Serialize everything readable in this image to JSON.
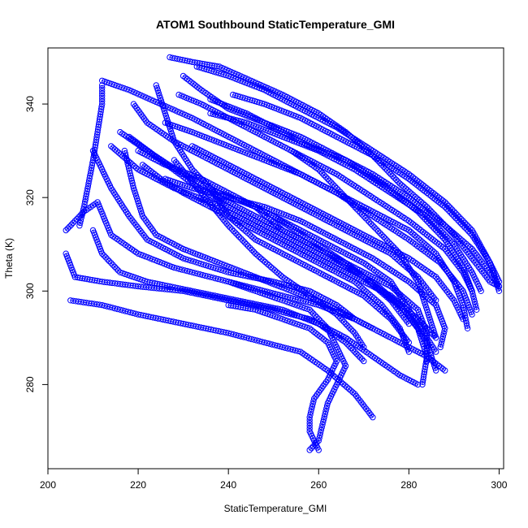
{
  "chart_data": {
    "type": "scatter",
    "title": "ATOM1 Southbound StaticTemperature_GMI",
    "xlabel": "StaticTemperature_GMI",
    "ylabel": "Theta (K)",
    "xlim": [
      200,
      301
    ],
    "ylim": [
      262,
      352
    ],
    "xticks": [
      200,
      220,
      240,
      260,
      280,
      300
    ],
    "yticks": [
      280,
      300,
      320,
      340
    ],
    "marker": "open-circle",
    "color": "#0000ff",
    "grid": false,
    "legend": "none",
    "profiles": [
      [
        [
          227,
          350
        ],
        [
          232,
          349
        ],
        [
          238,
          348
        ],
        [
          245,
          345
        ],
        [
          252,
          342
        ],
        [
          260,
          338
        ],
        [
          266,
          334
        ],
        [
          272,
          329
        ],
        [
          278,
          323
        ],
        [
          284,
          318
        ],
        [
          290,
          312
        ],
        [
          294,
          307
        ],
        [
          298,
          302
        ],
        [
          300,
          301
        ]
      ],
      [
        [
          212,
          345
        ],
        [
          218,
          343
        ],
        [
          225,
          340
        ],
        [
          232,
          337
        ],
        [
          240,
          333
        ],
        [
          248,
          329
        ],
        [
          256,
          325
        ],
        [
          264,
          321
        ],
        [
          272,
          316
        ],
        [
          280,
          311
        ],
        [
          287,
          306
        ],
        [
          292,
          300
        ],
        [
          294,
          295
        ]
      ],
      [
        [
          204,
          313
        ],
        [
          208,
          317
        ],
        [
          211,
          319
        ],
        [
          214,
          312
        ],
        [
          220,
          308
        ],
        [
          228,
          305
        ],
        [
          236,
          303
        ],
        [
          244,
          301
        ],
        [
          252,
          299
        ],
        [
          260,
          297
        ],
        [
          268,
          294
        ],
        [
          276,
          290
        ],
        [
          284,
          286
        ],
        [
          288,
          283
        ]
      ],
      [
        [
          204,
          308
        ],
        [
          206,
          303
        ],
        [
          212,
          302
        ],
        [
          220,
          301
        ],
        [
          230,
          300
        ],
        [
          240,
          298
        ],
        [
          250,
          296
        ],
        [
          258,
          294
        ],
        [
          266,
          290
        ],
        [
          272,
          286
        ],
        [
          278,
          282
        ],
        [
          282,
          280
        ]
      ],
      [
        [
          205,
          298
        ],
        [
          212,
          297
        ],
        [
          220,
          295
        ],
        [
          230,
          293
        ],
        [
          240,
          291
        ],
        [
          248,
          289
        ],
        [
          256,
          287
        ],
        [
          262,
          283
        ],
        [
          268,
          278
        ],
        [
          272,
          273
        ]
      ],
      [
        [
          210,
          313
        ],
        [
          212,
          308
        ],
        [
          216,
          304
        ],
        [
          222,
          302
        ],
        [
          232,
          300
        ],
        [
          242,
          298
        ],
        [
          252,
          296
        ],
        [
          260,
          293
        ],
        [
          266,
          289
        ],
        [
          270,
          285
        ]
      ],
      [
        [
          216,
          334
        ],
        [
          222,
          330
        ],
        [
          230,
          325
        ],
        [
          238,
          321
        ],
        [
          246,
          318
        ],
        [
          254,
          314
        ],
        [
          262,
          310
        ],
        [
          270,
          306
        ],
        [
          276,
          302
        ],
        [
          280,
          296
        ],
        [
          284,
          290
        ],
        [
          286,
          287
        ]
      ],
      [
        [
          218,
          333
        ],
        [
          225,
          328
        ],
        [
          232,
          323
        ],
        [
          240,
          318
        ],
        [
          248,
          314
        ],
        [
          256,
          310
        ],
        [
          264,
          306
        ],
        [
          272,
          302
        ],
        [
          278,
          297
        ],
        [
          282,
          292
        ],
        [
          284,
          286
        ],
        [
          283,
          280
        ]
      ],
      [
        [
          226,
          336
        ],
        [
          232,
          334
        ],
        [
          240,
          331
        ],
        [
          248,
          328
        ],
        [
          256,
          325
        ],
        [
          264,
          321
        ],
        [
          272,
          317
        ],
        [
          280,
          313
        ],
        [
          286,
          308
        ],
        [
          290,
          302
        ],
        [
          292,
          297
        ],
        [
          293,
          292
        ]
      ],
      [
        [
          229,
          342
        ],
        [
          234,
          340
        ],
        [
          240,
          337
        ],
        [
          248,
          333
        ],
        [
          256,
          329
        ],
        [
          264,
          325
        ],
        [
          272,
          320
        ],
        [
          280,
          315
        ],
        [
          288,
          309
        ],
        [
          292,
          304
        ],
        [
          294,
          300
        ]
      ],
      [
        [
          233,
          348
        ],
        [
          240,
          346
        ],
        [
          248,
          343
        ],
        [
          256,
          339
        ],
        [
          264,
          335
        ],
        [
          272,
          330
        ],
        [
          280,
          325
        ],
        [
          288,
          319
        ],
        [
          294,
          313
        ],
        [
          298,
          306
        ],
        [
          300,
          302
        ]
      ],
      [
        [
          241,
          342
        ],
        [
          248,
          340
        ],
        [
          256,
          337
        ],
        [
          264,
          333
        ],
        [
          272,
          329
        ],
        [
          280,
          324
        ],
        [
          288,
          318
        ],
        [
          294,
          312
        ],
        [
          298,
          306
        ],
        [
          300,
          300
        ]
      ],
      [
        [
          236,
          338
        ],
        [
          244,
          336
        ],
        [
          252,
          333
        ],
        [
          260,
          330
        ],
        [
          268,
          326
        ],
        [
          276,
          321
        ],
        [
          284,
          316
        ],
        [
          290,
          310
        ],
        [
          294,
          304
        ],
        [
          296,
          300
        ]
      ],
      [
        [
          214,
          331
        ],
        [
          220,
          326
        ],
        [
          228,
          322
        ],
        [
          236,
          319
        ],
        [
          244,
          315
        ],
        [
          252,
          311
        ],
        [
          260,
          307
        ],
        [
          268,
          303
        ],
        [
          276,
          299
        ],
        [
          282,
          294
        ],
        [
          286,
          290
        ]
      ],
      [
        [
          219,
          340
        ],
        [
          222,
          336
        ],
        [
          228,
          332
        ],
        [
          236,
          328
        ],
        [
          244,
          324
        ],
        [
          252,
          320
        ],
        [
          260,
          316
        ],
        [
          268,
          312
        ],
        [
          276,
          308
        ],
        [
          282,
          303
        ],
        [
          286,
          298
        ]
      ],
      [
        [
          212,
          344
        ],
        [
          212,
          340
        ],
        [
          211,
          334
        ],
        [
          210,
          328
        ],
        [
          209,
          323
        ],
        [
          208,
          318
        ],
        [
          207,
          314
        ]
      ],
      [
        [
          224,
          344
        ],
        [
          226,
          338
        ],
        [
          228,
          332
        ],
        [
          232,
          326
        ],
        [
          238,
          320
        ],
        [
          246,
          316
        ],
        [
          254,
          312
        ],
        [
          262,
          308
        ],
        [
          270,
          303
        ],
        [
          276,
          298
        ],
        [
          280,
          293
        ]
      ],
      [
        [
          221,
          327
        ],
        [
          225,
          324
        ],
        [
          230,
          321
        ],
        [
          236,
          318
        ],
        [
          244,
          314
        ],
        [
          252,
          310
        ],
        [
          260,
          306
        ],
        [
          268,
          302
        ],
        [
          274,
          297
        ],
        [
          278,
          292
        ],
        [
          280,
          287
        ]
      ],
      [
        [
          220,
          330
        ],
        [
          226,
          327
        ],
        [
          234,
          324
        ],
        [
          242,
          320
        ],
        [
          250,
          316
        ],
        [
          258,
          311
        ],
        [
          266,
          306
        ],
        [
          274,
          300
        ],
        [
          280,
          295
        ],
        [
          284,
          289
        ],
        [
          286,
          283
        ]
      ],
      [
        [
          217,
          330
        ],
        [
          219,
          322
        ],
        [
          221,
          316
        ],
        [
          224,
          312
        ],
        [
          230,
          309
        ],
        [
          238,
          306
        ],
        [
          246,
          303
        ],
        [
          254,
          300
        ],
        [
          262,
          297
        ],
        [
          268,
          294
        ],
        [
          272,
          292
        ]
      ],
      [
        [
          210,
          330
        ],
        [
          214,
          322
        ],
        [
          218,
          316
        ],
        [
          222,
          311
        ],
        [
          230,
          307
        ],
        [
          240,
          304
        ],
        [
          250,
          302
        ],
        [
          258,
          300
        ],
        [
          264,
          297
        ],
        [
          268,
          294
        ]
      ],
      [
        [
          240,
          302
        ],
        [
          246,
          300
        ],
        [
          252,
          298
        ],
        [
          258,
          296
        ],
        [
          262,
          292
        ],
        [
          264,
          288
        ],
        [
          266,
          284
        ],
        [
          264,
          280
        ],
        [
          262,
          276
        ],
        [
          261,
          272
        ],
        [
          260,
          268
        ],
        [
          258,
          266
        ]
      ],
      [
        [
          240,
          297
        ],
        [
          246,
          296
        ],
        [
          252,
          294
        ],
        [
          258,
          292
        ],
        [
          262,
          289
        ],
        [
          264,
          285
        ],
        [
          262,
          281
        ],
        [
          259,
          277
        ],
        [
          258,
          273
        ],
        [
          258,
          270
        ],
        [
          260,
          266
        ]
      ],
      [
        [
          226,
          324
        ],
        [
          232,
          322
        ],
        [
          240,
          320
        ],
        [
          248,
          318
        ],
        [
          256,
          315
        ],
        [
          264,
          311
        ],
        [
          272,
          307
        ],
        [
          280,
          302
        ],
        [
          286,
          297
        ],
        [
          288,
          292
        ],
        [
          287,
          288
        ]
      ],
      [
        [
          232,
          331
        ],
        [
          240,
          327
        ],
        [
          248,
          323
        ],
        [
          256,
          319
        ],
        [
          264,
          315
        ],
        [
          272,
          311
        ],
        [
          280,
          307
        ],
        [
          286,
          303
        ],
        [
          290,
          298
        ],
        [
          292,
          294
        ]
      ],
      [
        [
          230,
          346
        ],
        [
          234,
          343
        ],
        [
          240,
          339
        ],
        [
          248,
          336
        ],
        [
          256,
          333
        ],
        [
          264,
          329
        ],
        [
          272,
          325
        ],
        [
          280,
          320
        ],
        [
          288,
          314
        ],
        [
          294,
          309
        ],
        [
          298,
          304
        ],
        [
          300,
          301
        ]
      ],
      [
        [
          236,
          341
        ],
        [
          244,
          338
        ],
        [
          252,
          334
        ],
        [
          258,
          331
        ],
        [
          266,
          328
        ],
        [
          274,
          323
        ],
        [
          282,
          317
        ],
        [
          288,
          311
        ],
        [
          292,
          305
        ],
        [
          294,
          300
        ],
        [
          295,
          296
        ]
      ],
      [
        [
          228,
          328
        ],
        [
          234,
          321
        ],
        [
          240,
          314
        ],
        [
          246,
          308
        ],
        [
          252,
          303
        ],
        [
          258,
          299
        ],
        [
          264,
          295
        ],
        [
          268,
          291
        ],
        [
          270,
          288
        ]
      ],
      [
        [
          236,
          322
        ],
        [
          240,
          316
        ],
        [
          246,
          311
        ],
        [
          254,
          307
        ],
        [
          262,
          303
        ],
        [
          270,
          299
        ],
        [
          276,
          294
        ],
        [
          280,
          289
        ]
      ],
      [
        [
          246,
          318
        ],
        [
          252,
          313
        ],
        [
          260,
          309
        ],
        [
          268,
          305
        ],
        [
          276,
          301
        ],
        [
          282,
          296
        ],
        [
          284,
          291
        ],
        [
          284,
          285
        ]
      ],
      [
        [
          254,
          330
        ],
        [
          260,
          326
        ],
        [
          266,
          320
        ],
        [
          272,
          314
        ],
        [
          278,
          308
        ],
        [
          282,
          302
        ],
        [
          284,
          296
        ],
        [
          286,
          290
        ]
      ]
    ]
  }
}
